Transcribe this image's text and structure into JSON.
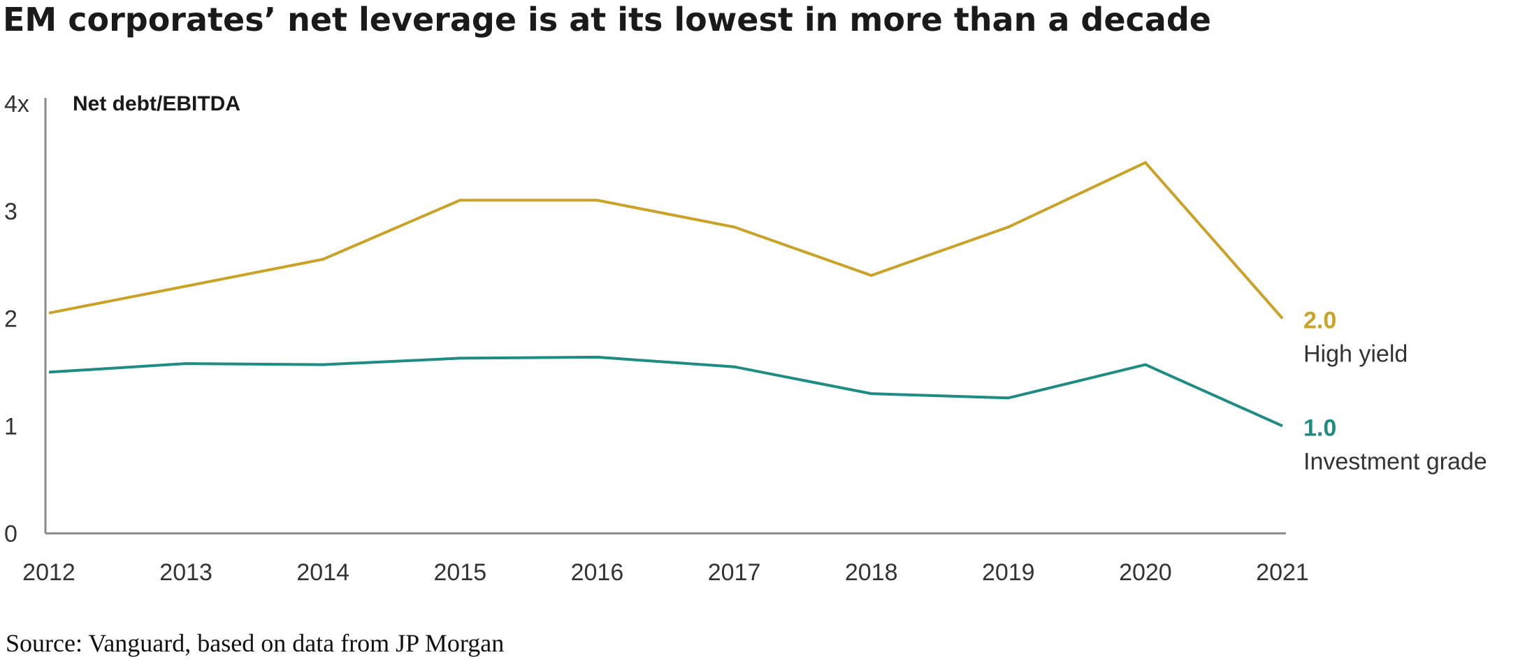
{
  "chart_data": {
    "type": "line",
    "title": "EM corporates’ net leverage is at its lowest in more than a decade",
    "ylabel": "Net debt/EBITDA",
    "xlabel": "",
    "x": [
      "2012",
      "2013",
      "2014",
      "2015",
      "2016",
      "2017",
      "2018",
      "2019",
      "2020",
      "2021"
    ],
    "ylim": [
      0,
      4
    ],
    "yticks": [
      {
        "value": 0,
        "label": "0"
      },
      {
        "value": 1,
        "label": "1"
      },
      {
        "value": 2,
        "label": "2"
      },
      {
        "value": 3,
        "label": "3"
      },
      {
        "value": 4,
        "label": "4x"
      }
    ],
    "grid": false,
    "series": [
      {
        "name": "High yield",
        "end_label": "2.0",
        "color": "#c9a227",
        "values": [
          2.05,
          2.3,
          2.55,
          3.1,
          3.1,
          2.85,
          2.4,
          2.85,
          3.45,
          2.0
        ]
      },
      {
        "name": "Investment grade",
        "end_label": "1.0",
        "color": "#1f8c84",
        "values": [
          1.5,
          1.58,
          1.57,
          1.63,
          1.64,
          1.55,
          1.3,
          1.26,
          1.57,
          1.0
        ]
      }
    ],
    "source": "Source: Vanguard, based on data from JP Morgan"
  }
}
